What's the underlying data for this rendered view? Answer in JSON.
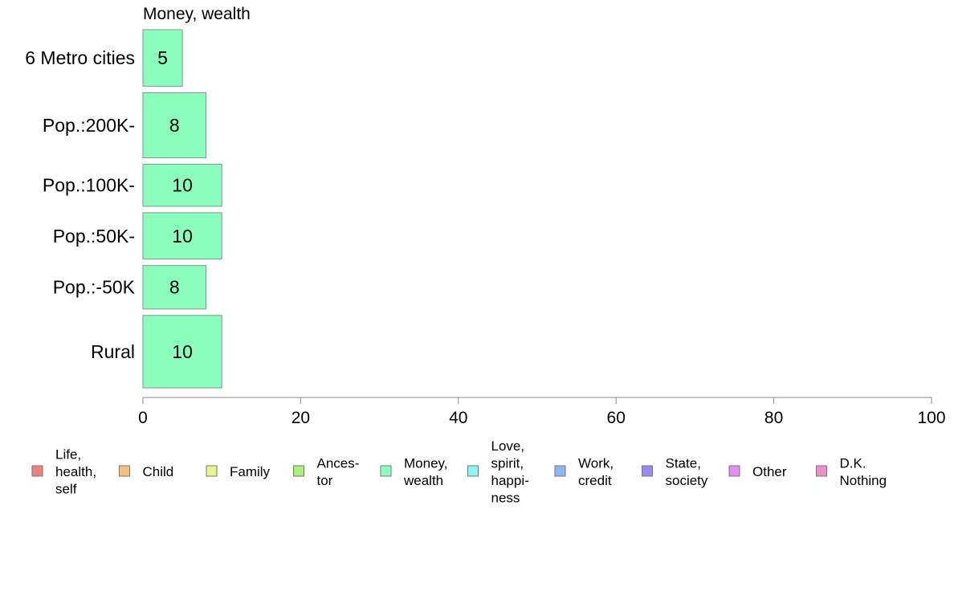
{
  "chart_data": {
    "type": "bar",
    "orientation": "horizontal",
    "title": "Money, wealth",
    "categories": [
      "6 Metro cities",
      "Pop.:200K-",
      "Pop.:100K-",
      "Pop.:50K-",
      "Pop.:-50K",
      "Rural"
    ],
    "series": [
      {
        "name": "Money, wealth",
        "values": [
          5,
          8,
          10,
          10,
          8,
          10
        ]
      }
    ],
    "category_weights": [
      0.78,
      0.9,
      0.58,
      0.64,
      0.6,
      1.0
    ],
    "x_ticks": [
      "0",
      "20",
      "40",
      "60",
      "80",
      "100"
    ],
    "xlim": [
      0,
      100
    ],
    "grid": false,
    "legend_position": "bottom",
    "legend": [
      {
        "label": [
          "Life,",
          "health,",
          "self"
        ],
        "color": "#f08080"
      },
      {
        "label": [
          "Child"
        ],
        "color": "#f5c07a"
      },
      {
        "label": [
          "Family"
        ],
        "color": "#e8f58a"
      },
      {
        "label": [
          "Ances-",
          "tor"
        ],
        "color": "#a8f07a"
      },
      {
        "label": [
          "Money,",
          "wealth"
        ],
        "color": "#8affbc"
      },
      {
        "label": [
          "Love,",
          "spirit,",
          "happi-",
          "ness"
        ],
        "color": "#8af5f5"
      },
      {
        "label": [
          "Work,",
          "credit"
        ],
        "color": "#8ab8f5"
      },
      {
        "label": [
          "State,",
          "society"
        ],
        "color": "#9a8af5"
      },
      {
        "label": [
          "Other"
        ],
        "color": "#e68af5"
      },
      {
        "label": [
          "D.K.",
          "Nothing"
        ],
        "color": "#f58acb"
      }
    ],
    "colors": {
      "bar": "#8affbc",
      "bar_border": "#7a9a88",
      "axis": "#888888"
    }
  }
}
